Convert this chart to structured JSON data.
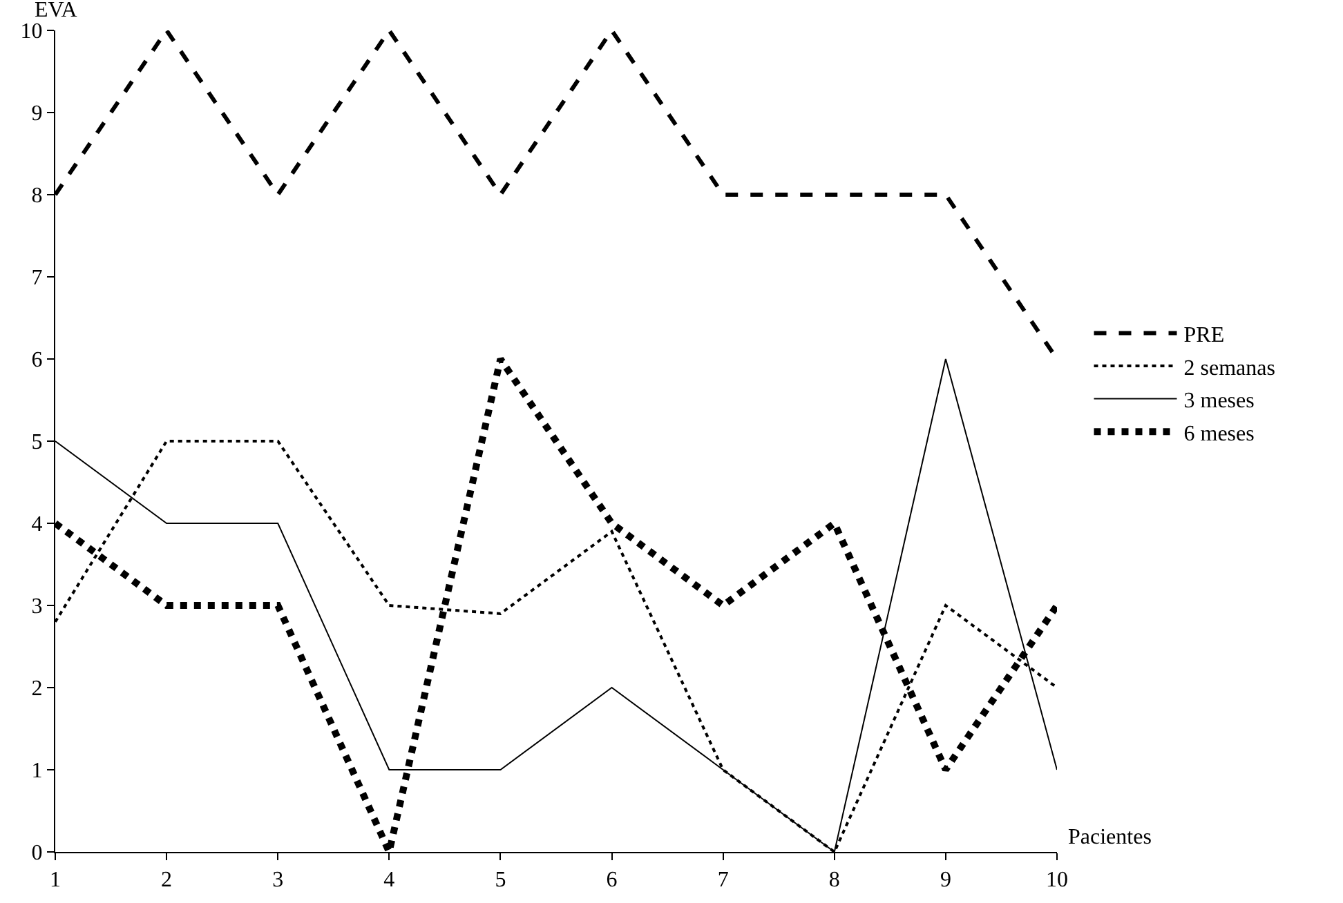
{
  "chart_data": {
    "type": "line",
    "xlabel": "Pacientes",
    "ylabel": "EVA",
    "x": [
      1,
      2,
      3,
      4,
      5,
      6,
      7,
      8,
      9,
      10
    ],
    "xlim": [
      1,
      10
    ],
    "xticks": [
      1,
      2,
      3,
      4,
      5,
      6,
      7,
      8,
      9,
      10
    ],
    "ylim": [
      0,
      10
    ],
    "yticks": [
      0,
      1,
      2,
      3,
      4,
      5,
      6,
      7,
      8,
      9,
      10
    ],
    "grid": false,
    "legend": "right",
    "marker": "none",
    "series": [
      {
        "name": "PRE",
        "color": "#000000",
        "line_style": "dashed",
        "values": [
          8,
          10,
          8,
          10,
          8,
          10,
          8,
          8,
          8,
          6
        ]
      },
      {
        "name": "2 semanas",
        "color": "#000000",
        "line_style": "dotted",
        "values": [
          2.8,
          5,
          5,
          3,
          2.9,
          3.9,
          1,
          0,
          3,
          2
        ]
      },
      {
        "name": "3 meses",
        "color": "#000000",
        "line_style": "solid",
        "values": [
          5,
          4,
          4,
          1,
          1,
          2,
          1,
          0,
          6,
          1
        ]
      },
      {
        "name": "6 meses",
        "color": "#000000",
        "line_style": "dotted",
        "values": [
          4,
          3,
          3,
          0,
          6,
          4,
          3,
          4,
          1,
          3
        ]
      }
    ]
  }
}
